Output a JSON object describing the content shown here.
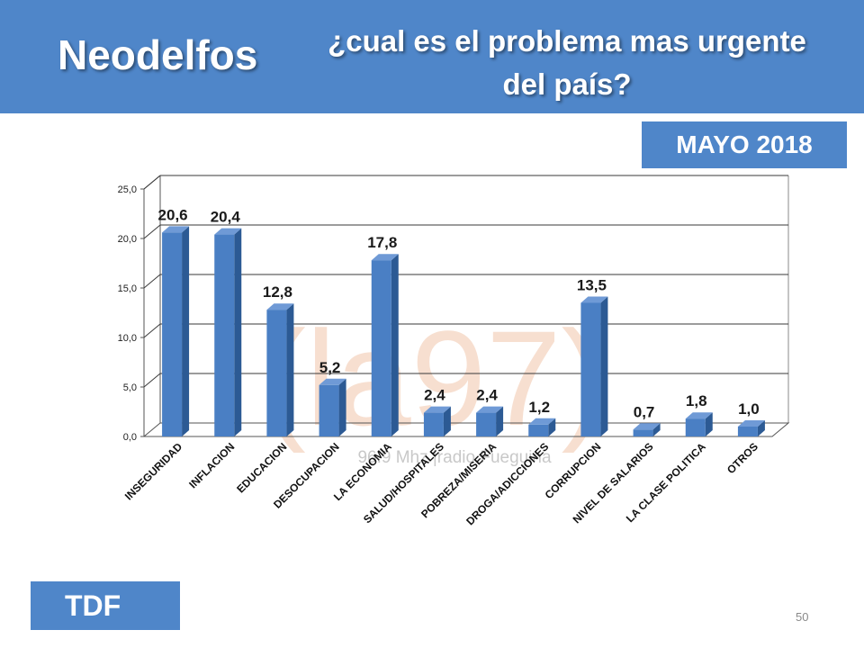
{
  "header": {
    "brand": "Neodelfos",
    "question_line1": "¿cual es el problema mas urgente",
    "question_line2": "del país?"
  },
  "date_label": "MAYO 2018",
  "region_label": "TDF",
  "page_number": "50",
  "watermark": {
    "logo": "(la97)",
    "text": "96.9 Mhz |radio Fueguina"
  },
  "colors": {
    "header_bg": "#4f86c9",
    "bar": "#4a7fc4",
    "bar_side": "#2c5a94",
    "bar_top": "#6f9ad6"
  },
  "chart_data": {
    "type": "bar",
    "categories": [
      "INSEGURIDAD",
      "INFLACION",
      "EDUCACION",
      "DESOCUPACION",
      "LA ECONOMIA",
      "SALUD/HOSPITALES",
      "POBREZA/MISERIA",
      "DROGA/ADICCIONES",
      "CORRUPCION",
      "NIVEL DE SALARIOS",
      "LA CLASE POLITICA",
      "OTROS"
    ],
    "values": [
      20.6,
      20.4,
      12.8,
      5.2,
      17.8,
      2.4,
      2.4,
      1.2,
      13.5,
      0.7,
      1.8,
      1.0
    ],
    "value_labels": [
      "20,6",
      "20,4",
      "12,8",
      "5,2",
      "17,8",
      "2,4",
      "2,4",
      "1,2",
      "13,5",
      "0,7",
      "1,8",
      "1,0"
    ],
    "yticks": [
      "0,0",
      "5,0",
      "10,0",
      "15,0",
      "20,0",
      "25,0"
    ],
    "ylim": [
      0,
      25
    ],
    "grid": true,
    "legend": "none"
  }
}
